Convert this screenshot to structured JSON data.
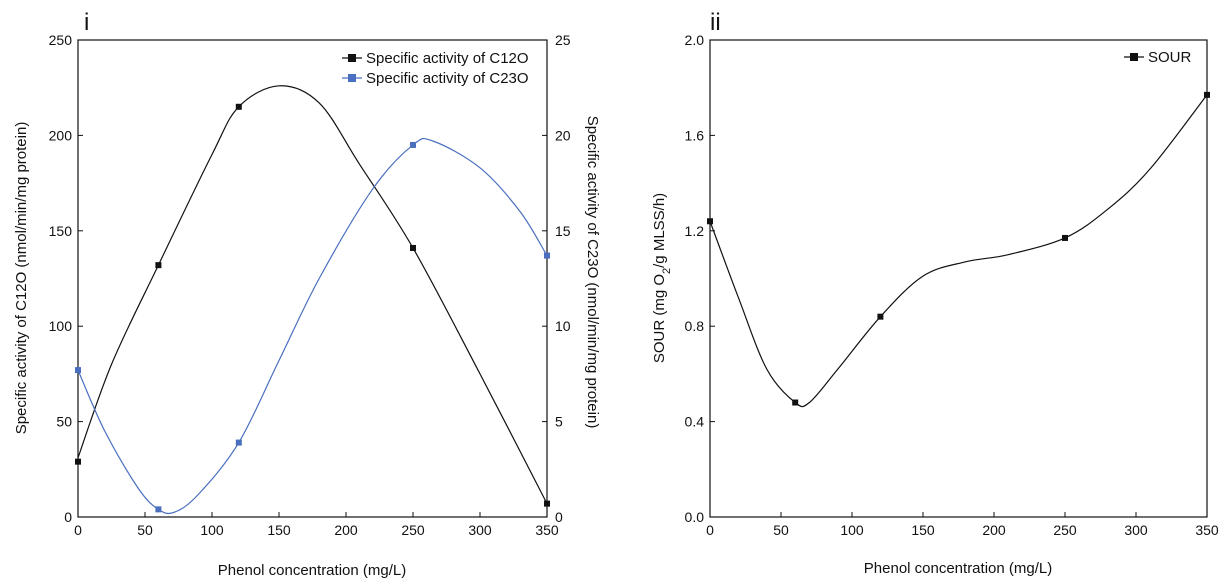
{
  "chart_data": [
    {
      "type": "line",
      "panel_label": "i",
      "xlabel": "Phenol concentration (mg/L)",
      "ylabel": "Specific activity of C12O (nmol/min/mg protein)",
      "y2label": "Specific activity of C23O (nmol/min/mg protein)",
      "xlim": [
        0,
        350
      ],
      "ylim": [
        0,
        250
      ],
      "y2lim": [
        0,
        25
      ],
      "x_ticks": [
        0,
        50,
        100,
        150,
        200,
        250,
        300,
        350
      ],
      "y_ticks": [
        0,
        50,
        100,
        150,
        200,
        250
      ],
      "y2_ticks": [
        0,
        5,
        10,
        15,
        20,
        25
      ],
      "grid": false,
      "legend_position": "top-right",
      "series": [
        {
          "name": "Specific activity of C12O",
          "axis": "left",
          "color": "#111111",
          "x": [
            0,
            60,
            120,
            250,
            350
          ],
          "y": [
            29,
            132,
            215,
            141,
            7
          ],
          "curve_x": [
            0,
            25,
            60,
            100,
            120,
            150,
            180,
            210,
            250,
            300,
            350
          ],
          "curve_y": [
            31,
            80,
            132,
            190,
            215,
            226,
            217,
            185,
            141,
            75,
            7
          ]
        },
        {
          "name": "Specific activity of C23O",
          "axis": "right",
          "color": "#4a6fbf",
          "x": [
            0,
            60,
            120,
            250,
            350
          ],
          "y": [
            7.7,
            0.4,
            3.9,
            19.5,
            13.7
          ],
          "curve_x": [
            0,
            20,
            45,
            60,
            72,
            90,
            120,
            150,
            180,
            220,
            250,
            265,
            300,
            330,
            350
          ],
          "curve_y": [
            7.7,
            4.5,
            1.5,
            0.4,
            0.25,
            1.2,
            3.9,
            8.2,
            12.5,
            17.2,
            19.5,
            19.7,
            18.3,
            16.0,
            13.7
          ]
        }
      ]
    },
    {
      "type": "line",
      "panel_label": "ii",
      "xlabel": "Phenol concentration (mg/L)",
      "ylabel": "SOUR (mg O2/g MLSS/h)",
      "ylabel_parts": [
        "SOUR (mg O",
        "2",
        "/g MLSS/h)"
      ],
      "xlim": [
        0,
        350
      ],
      "ylim": [
        0,
        2.0
      ],
      "x_ticks": [
        0,
        50,
        100,
        150,
        200,
        250,
        300,
        350
      ],
      "y_ticks": [
        "0.0",
        "0.4",
        "0.8",
        "1.2",
        "1.6",
        "2.0"
      ],
      "grid": false,
      "legend_position": "top-right",
      "series": [
        {
          "name": "SOUR",
          "color": "#111111",
          "x": [
            0,
            60,
            120,
            250,
            350
          ],
          "y": [
            1.24,
            0.48,
            0.84,
            1.17,
            1.77
          ],
          "curve_x": [
            0,
            20,
            40,
            60,
            70,
            90,
            120,
            150,
            180,
            210,
            250,
            280,
            310,
            350
          ],
          "curve_y": [
            1.24,
            0.92,
            0.62,
            0.48,
            0.48,
            0.62,
            0.84,
            1.01,
            1.07,
            1.1,
            1.17,
            1.29,
            1.46,
            1.77
          ]
        }
      ]
    }
  ]
}
